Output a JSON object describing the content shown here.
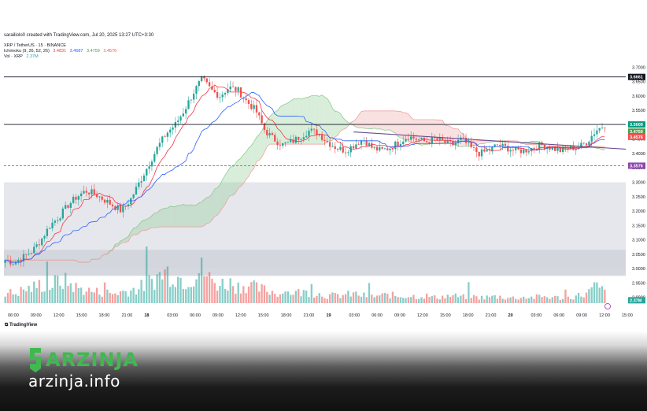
{
  "header": {
    "creator": "sarailiolo0 created with TradingView.com, Jul 20, 2025 13:27 UTC+3:30",
    "symbol": "XRP / TetherUS · 15 · BINANCE",
    "ichimoku_label": "Ichimoku (9, 26, 52, 26)",
    "ichimoku_values": [
      "3.4831",
      "3.4687",
      "3.4759",
      "3.4576"
    ],
    "volume_label": "Vol · XRP",
    "volume_value": "2.37M"
  },
  "colors": {
    "up": "#26a69a",
    "down": "#ef5350",
    "tenkan": "#2962ff",
    "kijun": "#f23645",
    "span_a": "#81c784",
    "span_b": "#ef9a9a",
    "trendline": "#6a4c93",
    "support_label": "#8e44ad",
    "price_label": "#089981",
    "zone": "#d1d4dc"
  },
  "price_labels": {
    "top_level": "3.6661",
    "current": "3.5009",
    "tenkan": "3.4759",
    "kijun": "3.4576",
    "support": "3.3576",
    "volume": "2.37M"
  },
  "footer": {
    "tradingview": "TradingView",
    "brand": "ARZINJA",
    "url": "arzinja.info"
  },
  "chart_data": {
    "type": "candlestick",
    "pair": "XRP / TetherUS",
    "interval": "15",
    "exchange": "BINANCE",
    "y_ticks": [
      3.7,
      3.65,
      3.6,
      3.55,
      3.5,
      3.45,
      3.4,
      3.35,
      3.3,
      3.25,
      3.2,
      3.15,
      3.1,
      3.05,
      3.0,
      2.95,
      2.9
    ],
    "y_tick_labels": [
      "3.7000",
      "3.6500",
      "3.6000",
      "3.5500",
      "3.5000",
      "3.4500",
      "3.4000",
      "3.3500",
      "3.3000",
      "3.2500",
      "3.2000",
      "3.1500",
      "3.1000",
      "3.0500",
      "3.0000",
      "2.9500",
      "2.9000"
    ],
    "x_tick_labels": [
      "06:00",
      "09:00",
      "12:00",
      "15:00",
      "18:00",
      "21:00",
      "18",
      "03:00",
      "06:00",
      "09:00",
      "12:00",
      "15:00",
      "18:00",
      "21:00",
      "19",
      "03:00",
      "06:00",
      "09:00",
      "12:00",
      "15:00",
      "18:00",
      "21:00",
      "20",
      "03:00",
      "06:00",
      "09:00",
      "12:00",
      "15:00"
    ],
    "ylim": [
      2.88,
      3.72
    ],
    "horizontal_levels": [
      3.6661,
      3.5009,
      3.3576
    ],
    "zones": [
      [
        3.0,
        3.3
      ],
      [
        2.975,
        3.065
      ]
    ],
    "close_path": [
      3.03,
      3.02,
      3.04,
      3.06,
      3.1,
      3.15,
      3.18,
      3.22,
      3.25,
      3.27,
      3.26,
      3.24,
      3.22,
      3.2,
      3.24,
      3.3,
      3.36,
      3.42,
      3.47,
      3.5,
      3.55,
      3.61,
      3.66,
      3.62,
      3.6,
      3.63,
      3.62,
      3.58,
      3.55,
      3.48,
      3.45,
      3.43,
      3.44,
      3.46,
      3.48,
      3.47,
      3.44,
      3.42,
      3.41,
      3.43,
      3.45,
      3.42,
      3.41,
      3.42,
      3.44,
      3.46,
      3.45,
      3.44,
      3.45,
      3.44,
      3.43,
      3.45,
      3.42,
      3.4,
      3.41,
      3.43,
      3.42,
      3.41,
      3.41,
      3.42,
      3.43,
      3.42,
      3.41,
      3.42,
      3.42,
      3.44,
      3.48,
      3.5
    ],
    "volume_path": [
      0.3,
      0.25,
      0.35,
      0.4,
      0.5,
      0.45,
      0.6,
      0.55,
      0.4,
      0.35,
      0.3,
      0.3,
      0.25,
      0.3,
      0.35,
      0.4,
      0.55,
      0.7,
      0.85,
      0.75,
      0.6,
      0.7,
      0.9,
      0.6,
      0.5,
      0.55,
      0.45,
      0.5,
      0.4,
      0.35,
      0.3,
      0.25,
      0.3,
      0.28,
      0.3,
      0.25,
      0.2,
      0.2,
      0.22,
      0.25,
      0.2,
      0.18,
      0.2,
      0.22,
      0.18,
      0.2,
      0.18,
      0.2,
      0.15,
      0.18,
      0.2,
      0.16,
      0.18,
      0.15,
      0.16,
      0.18,
      0.15,
      0.14,
      0.16,
      0.15,
      0.18,
      0.16,
      0.14,
      0.15,
      0.2,
      0.25,
      0.45,
      0.3
    ]
  }
}
